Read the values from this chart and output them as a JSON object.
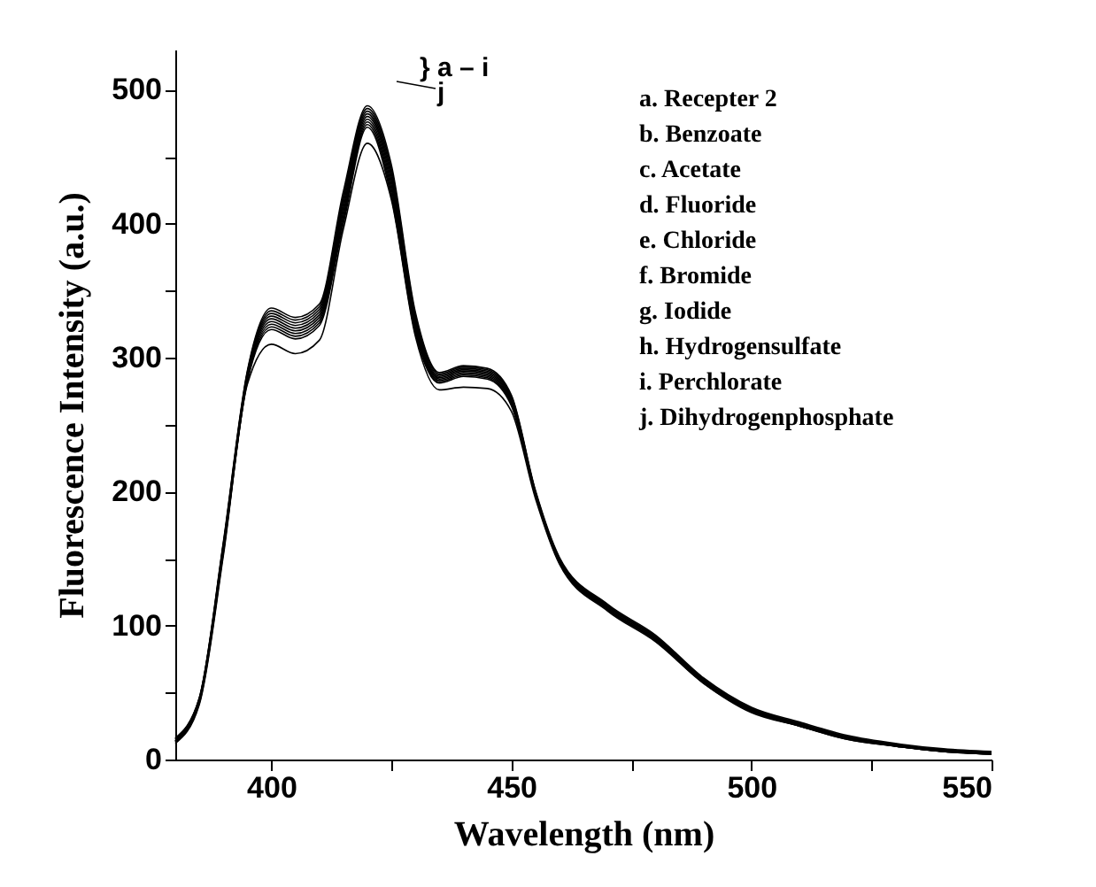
{
  "chart_data": {
    "type": "line",
    "xlabel": "Wavelength (nm)",
    "ylabel": "Fluorescence Intensity (a.u.)",
    "x": [
      380,
      385,
      390,
      395,
      400,
      405,
      410,
      415,
      420,
      425,
      430,
      435,
      440,
      445,
      450,
      455,
      460,
      470,
      480,
      490,
      500,
      510,
      520,
      530,
      540,
      550
    ],
    "series": [
      {
        "color": "#000000",
        "values": [
          16,
          46,
          162,
          290,
          337,
          330,
          340,
          424,
          488,
          444,
          334,
          289,
          294,
          292,
          272,
          201,
          151,
          116,
          93,
          61,
          39,
          28,
          18,
          12,
          8,
          6
        ]
      },
      {
        "color": "#000000",
        "values": [
          16,
          46,
          161,
          289,
          335,
          328,
          338,
          421,
          486,
          441,
          332,
          288,
          293,
          291,
          271,
          200,
          150,
          115,
          92,
          60,
          38,
          27,
          17,
          11,
          7,
          5
        ]
      },
      {
        "color": "#000000",
        "values": [
          15,
          45,
          160,
          288,
          333,
          326,
          336,
          418,
          484,
          438,
          330,
          287,
          292,
          290,
          270,
          200,
          150,
          115,
          92,
          60,
          38,
          27,
          17,
          11,
          7,
          5
        ]
      },
      {
        "color": "#000000",
        "values": [
          15,
          45,
          159,
          287,
          331,
          324,
          334,
          415,
          482,
          435,
          328,
          286,
          291,
          289,
          269,
          199,
          149,
          114,
          91,
          59,
          38,
          27,
          17,
          11,
          7,
          5
        ]
      },
      {
        "color": "#000000",
        "values": [
          14,
          44,
          158,
          286,
          329,
          322,
          332,
          412,
          480,
          432,
          326,
          285,
          290,
          288,
          268,
          199,
          149,
          114,
          91,
          59,
          37,
          26,
          17,
          11,
          7,
          5
        ]
      },
      {
        "color": "#000000",
        "values": [
          14,
          44,
          157,
          285,
          327,
          320,
          330,
          409,
          478,
          429,
          324,
          284,
          289,
          287,
          267,
          198,
          148,
          113,
          90,
          59,
          37,
          26,
          16,
          11,
          7,
          5
        ]
      },
      {
        "color": "#000000",
        "values": [
          14,
          43,
          156,
          284,
          325,
          318,
          328,
          406,
          476,
          426,
          322,
          283,
          288,
          286,
          266,
          198,
          148,
          113,
          90,
          58,
          37,
          26,
          16,
          10,
          6,
          5
        ]
      },
      {
        "color": "#000000",
        "values": [
          13,
          43,
          155,
          283,
          323,
          316,
          326,
          403,
          474,
          423,
          320,
          282,
          287,
          285,
          265,
          197,
          147,
          112,
          89,
          58,
          36,
          25,
          16,
          10,
          6,
          4
        ]
      },
      {
        "color": "#000000",
        "values": [
          13,
          42,
          154,
          282,
          321,
          314,
          324,
          400,
          472,
          420,
          318,
          281,
          286,
          284,
          264,
          197,
          147,
          112,
          89,
          57,
          36,
          25,
          15,
          10,
          6,
          4
        ]
      },
      {
        "color": "#000000",
        "values": [
          12,
          41,
          152,
          280,
          310,
          303,
          313,
          396,
          460,
          418,
          316,
          276,
          278,
          277,
          260,
          195,
          146,
          111,
          88,
          57,
          35,
          25,
          15,
          10,
          6,
          4
        ]
      }
    ],
    "xlim": [
      380,
      550
    ],
    "ylim": [
      0,
      530
    ],
    "xticks": [
      400,
      {
        "value": 425,
        "label": null
      },
      450,
      {
        "value": 475,
        "label": null
      },
      500,
      {
        "value": 525,
        "label": null
      },
      550
    ],
    "yticks": [
      0,
      {
        "value": 50,
        "label": null
      },
      100,
      {
        "value": 150,
        "label": null
      },
      200,
      {
        "value": 250,
        "label": null
      },
      300,
      {
        "value": 350,
        "label": null
      },
      400,
      {
        "value": 450,
        "label": null
      },
      500
    ],
    "marker": "none",
    "line_style": "solid",
    "grid": false,
    "legend": false,
    "annotations": [
      "} a – i",
      "j",
      "a. Recepter 2",
      "b. Benzoate",
      "c. Acetate",
      "d. Fluoride",
      "e. Chloride",
      "f. Bromide",
      "g. Iodide",
      "h. Hydrogensulfate",
      "i.  Perchlorate",
      "j.  Dihydrogenphosphate"
    ]
  }
}
